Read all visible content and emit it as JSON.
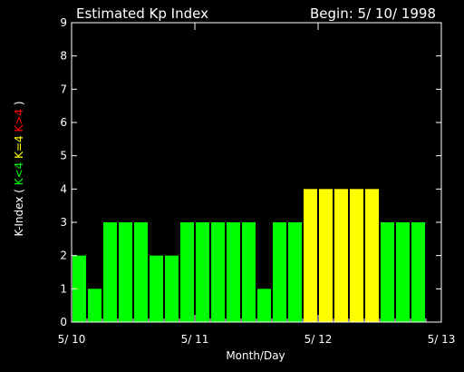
{
  "header": {
    "title": "Estimated Kp Index",
    "begin": "Begin: 5/ 10/ 1998"
  },
  "ylabel_parts": [
    {
      "text": "K-Index",
      "color": "#ffffff"
    },
    {
      "text": "(",
      "color": "#ffffff"
    },
    {
      "text": "K<4",
      "color": "#00ff00"
    },
    {
      "text": "K=4",
      "color": "#ffff00"
    },
    {
      "text": "K>4",
      "color": "#ff0000"
    },
    {
      "text": ")",
      "color": "#ffffff"
    }
  ],
  "colors": {
    "below4": "#00ff00",
    "equal4": "#ffff00",
    "above4": "#ff0000",
    "axis": "#ffffff",
    "background": "#000000"
  },
  "chart_data": {
    "type": "bar",
    "title": "Estimated Kp Index",
    "xlabel": "Month/Day",
    "ylabel": "K-Index",
    "ylim": [
      0,
      9
    ],
    "yticks": [
      "0",
      "1",
      "2",
      "3",
      "4",
      "5",
      "6",
      "7",
      "8",
      "9"
    ],
    "xlim": [
      0,
      24
    ],
    "xtick_labels": [
      "5/ 10",
      "5/ 11",
      "5/ 12",
      "5/ 13"
    ],
    "values": [
      2,
      1,
      3,
      3,
      3,
      2,
      2,
      3,
      3,
      3,
      3,
      3,
      1,
      3,
      3,
      4,
      4,
      4,
      4,
      4,
      3,
      3,
      3,
      0
    ],
    "grid": false
  }
}
